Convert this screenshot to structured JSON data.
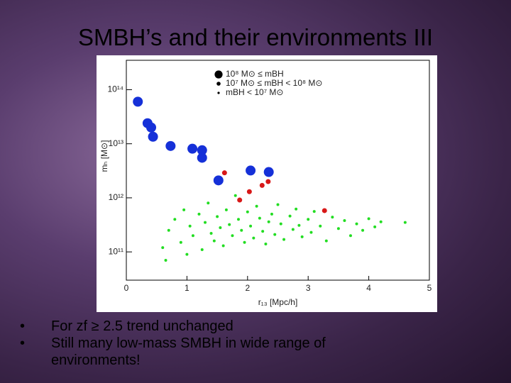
{
  "title": "SMBH’s and their environments III",
  "bullets": [
    "For zf ≥ 2.5 trend unchanged",
    "Still many low-mass SMBH in wide range of environments!"
  ],
  "chart_data": {
    "type": "scatter",
    "xlabel": "r₁₃ [Mpc/h]",
    "ylabel": "mₕ [M⊙]",
    "xlim": [
      0,
      5
    ],
    "xticks": [
      0,
      1,
      2,
      3,
      4,
      5
    ],
    "ylim": [
      30000000000,
      350000000000000
    ],
    "log_y": true,
    "yticks": [
      {
        "value": 100000000000,
        "label": "10¹¹"
      },
      {
        "value": 1000000000000,
        "label": "10¹²"
      },
      {
        "value": 10000000000000,
        "label": "10¹³"
      },
      {
        "value": 100000000000000,
        "label": "10¹⁴"
      }
    ],
    "legend": "top",
    "series": [
      {
        "name": "10⁸ M⊙ ≤ mBH",
        "color": "#1530d8",
        "x": [
          0.19,
          0.35,
          0.41,
          0.44,
          0.73,
          1.09,
          1.25,
          1.25,
          1.52,
          2.05,
          2.35
        ],
        "values": [
          60000000000000.0,
          24000000000000.0,
          20000000000000.0,
          13500000000000.0,
          9100000000000.0,
          8100000000000.0,
          7600000000000.0,
          5500000000000.0,
          2100000000000.0,
          3200000000000.0,
          3000000000000.0
        ]
      },
      {
        "name": "10⁷ M⊙ ≤ mBH < 10⁸ M⊙",
        "color": "#d81818",
        "x": [
          1.62,
          2.03,
          2.24,
          2.34,
          1.87,
          3.27
        ],
        "values": [
          2900000000000.0,
          1300000000000.0,
          1700000000000.0,
          2000000000000.0,
          910000000000.0,
          580000000000.0
        ]
      },
      {
        "name": "mBH < 10⁷ M⊙",
        "color": "#22dd22",
        "x": [
          0.6,
          0.65,
          0.7,
          0.8,
          0.9,
          0.95,
          1.0,
          1.05,
          1.1,
          1.2,
          1.25,
          1.3,
          1.35,
          1.4,
          1.45,
          1.5,
          1.55,
          1.6,
          1.65,
          1.7,
          1.75,
          1.8,
          1.85,
          1.9,
          1.95,
          2.0,
          2.05,
          2.1,
          2.15,
          2.2,
          2.25,
          2.3,
          2.35,
          2.4,
          2.45,
          2.5,
          2.55,
          2.6,
          2.7,
          2.75,
          2.8,
          2.85,
          2.9,
          3.0,
          3.05,
          3.1,
          3.2,
          3.3,
          3.4,
          3.5,
          3.6,
          3.7,
          3.8,
          3.9,
          4.0,
          4.1,
          4.2,
          4.6
        ],
        "values": [
          120000000000.0,
          70000000000.0,
          250000000000.0,
          400000000000.0,
          150000000000.0,
          600000000000.0,
          90000000000.0,
          300000000000.0,
          200000000000.0,
          500000000000.0,
          110000000000.0,
          350000000000.0,
          800000000000.0,
          220000000000.0,
          160000000000.0,
          450000000000.0,
          280000000000.0,
          130000000000.0,
          600000000000.0,
          320000000000.0,
          200000000000.0,
          1100000000000.0,
          400000000000.0,
          250000000000.0,
          150000000000.0,
          550000000000.0,
          300000000000.0,
          180000000000.0,
          700000000000.0,
          420000000000.0,
          240000000000.0,
          140000000000.0,
          360000000000.0,
          500000000000.0,
          210000000000.0,
          750000000000.0,
          330000000000.0,
          170000000000.0,
          460000000000.0,
          260000000000.0,
          620000000000.0,
          310000000000.0,
          190000000000.0,
          400000000000.0,
          230000000000.0,
          560000000000.0,
          300000000000.0,
          160000000000.0,
          440000000000.0,
          270000000000.0,
          380000000000.0,
          200000000000.0,
          330000000000.0,
          250000000000.0,
          410000000000.0,
          290000000000.0,
          360000000000.0,
          350000000000.0
        ]
      }
    ]
  }
}
